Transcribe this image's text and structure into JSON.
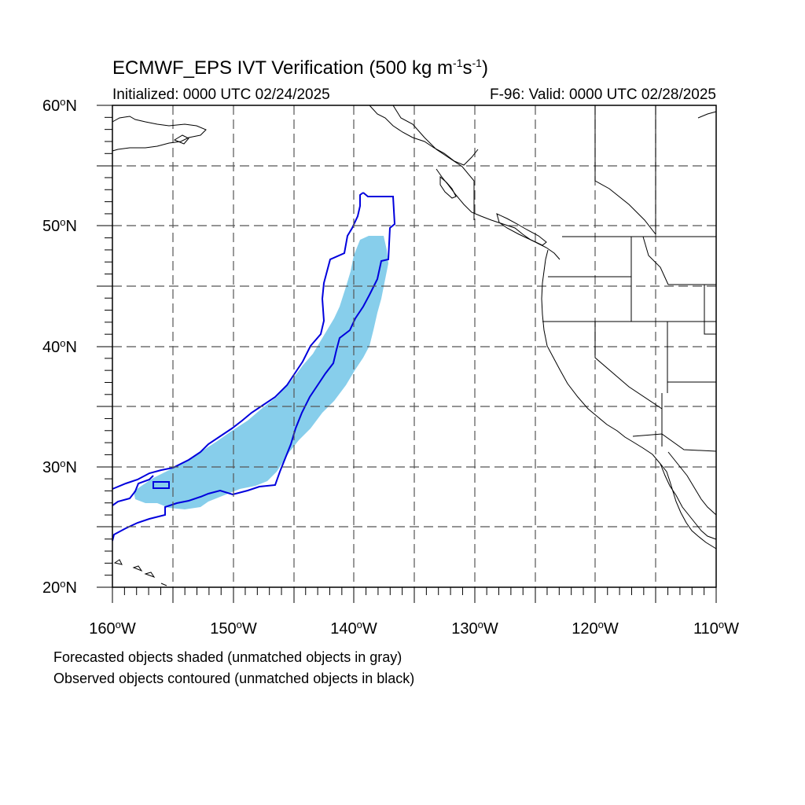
{
  "header": {
    "title_main": "ECMWF_EPS IVT Verification (500 kg m",
    "title_exp1": "-1",
    "title_mid": "s",
    "title_exp2": "-1",
    "title_end": ")",
    "initialized": "Initialized: 0000 UTC 02/24/2025",
    "valid": "F-96: Valid: 0000 UTC 02/28/2025"
  },
  "axes": {
    "lat_labels": [
      {
        "num": "60",
        "suffix": "N"
      },
      {
        "num": "50",
        "suffix": "N"
      },
      {
        "num": "40",
        "suffix": "N"
      },
      {
        "num": "30",
        "suffix": "N"
      },
      {
        "num": "20",
        "suffix": "N"
      }
    ],
    "lon_labels": [
      {
        "num": "160",
        "suffix": "W"
      },
      {
        "num": "150",
        "suffix": "W"
      },
      {
        "num": "140",
        "suffix": "W"
      },
      {
        "num": "130",
        "suffix": "W"
      },
      {
        "num": "120",
        "suffix": "W"
      },
      {
        "num": "110",
        "suffix": "W"
      }
    ],
    "lat_range": [
      20,
      60
    ],
    "lon_range": [
      -160,
      -110
    ],
    "grid": "dashed every 5 degrees"
  },
  "legend": {
    "forecast_note": "Forecasted objects shaded (unmatched objects in gray)",
    "observed_note": "Observed objects contoured (unmatched objects in black)"
  },
  "colors": {
    "forecast_fill": "#87ceeb",
    "observed_contour": "#0000dd",
    "coast": "#000000",
    "grid": "#555555"
  }
}
